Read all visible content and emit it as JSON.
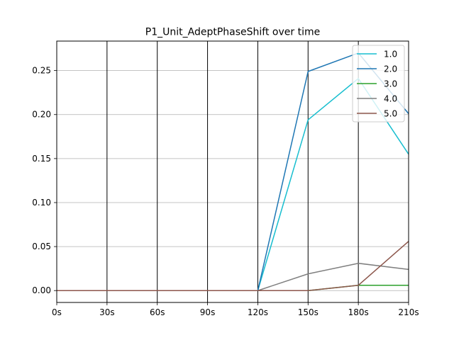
{
  "chart_data": {
    "type": "line",
    "title": "P1_Unit_AdeptPhaseShift over time",
    "xlabel": "",
    "ylabel": "",
    "x": [
      "0s",
      "30s",
      "60s",
      "90s",
      "120s",
      "150s",
      "180s",
      "210s"
    ],
    "x_values": [
      0,
      30,
      60,
      90,
      120,
      150,
      180,
      210
    ],
    "xlim": [
      0,
      210
    ],
    "ylim": [
      -0.0135,
      0.2835
    ],
    "yticks": [
      0.0,
      0.05,
      0.1,
      0.15,
      0.2,
      0.25
    ],
    "ytick_labels": [
      "0.00",
      "0.05",
      "0.10",
      "0.15",
      "0.20",
      "0.25"
    ],
    "grid": "horizontal",
    "vertical_lines_at": [
      30,
      60,
      90,
      120,
      150,
      180
    ],
    "legend_position": "top-right",
    "series": [
      {
        "name": "1.0",
        "color": "#17becf",
        "values": [
          0,
          0,
          0,
          0,
          0,
          0.194,
          0.241,
          0.155
        ]
      },
      {
        "name": "2.0",
        "color": "#1f77b4",
        "values": [
          0,
          0,
          0,
          0,
          0,
          0.249,
          0.27,
          0.201
        ]
      },
      {
        "name": "3.0",
        "color": "#2ca02c",
        "values": [
          0,
          0,
          0,
          0,
          0,
          0,
          0.006,
          0.006
        ]
      },
      {
        "name": "4.0",
        "color": "#7f7f7f",
        "values": [
          0,
          0,
          0,
          0,
          0,
          0.019,
          0.031,
          0.024
        ]
      },
      {
        "name": "5.0",
        "color": "#8c564b",
        "values": [
          0,
          0,
          0,
          0,
          0,
          0,
          0.006,
          0.056
        ]
      }
    ]
  }
}
